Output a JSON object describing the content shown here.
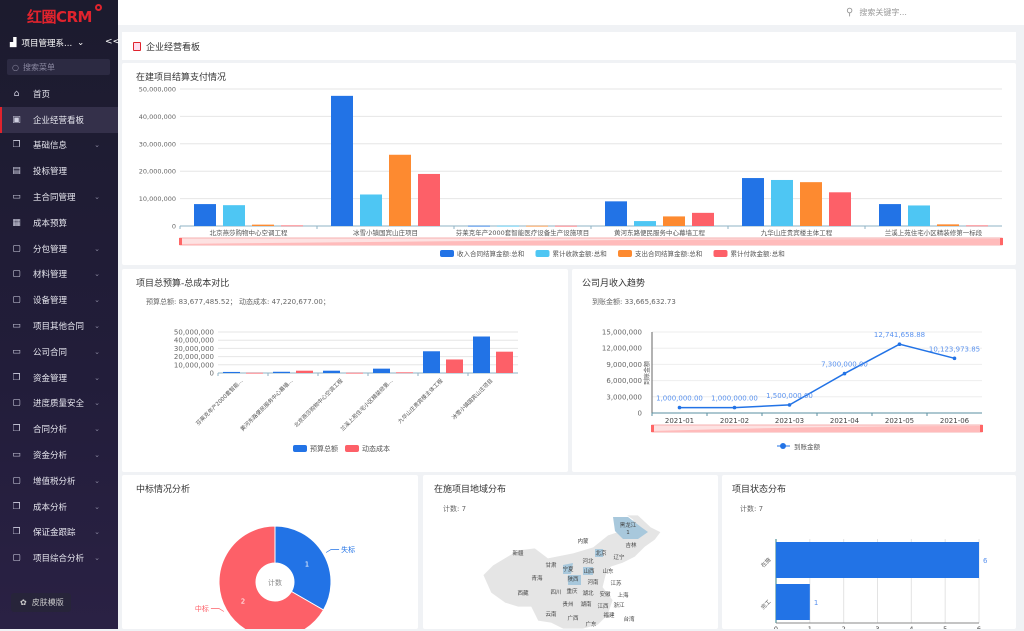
{
  "sidebar": {
    "logo": "红圈CRM",
    "system": "项目管理系...",
    "collapse": "<<",
    "search_placeholder": "搜索菜单",
    "items": [
      {
        "label": "首页",
        "icon": "home-icon",
        "sub": false
      },
      {
        "label": "企业经营看板",
        "icon": "dashboard-icon",
        "sub": false,
        "active": true
      },
      {
        "label": "基础信息",
        "icon": "copy-icon",
        "sub": true
      },
      {
        "label": "投标管理",
        "icon": "document-icon",
        "sub": false
      },
      {
        "label": "主合同管理",
        "icon": "window-icon",
        "sub": true
      },
      {
        "label": "成本预算",
        "icon": "budget-icon",
        "sub": false
      },
      {
        "label": "分包管理",
        "icon": "folder-icon",
        "sub": true
      },
      {
        "label": "材料管理",
        "icon": "folder-icon",
        "sub": true
      },
      {
        "label": "设备管理",
        "icon": "folder-icon",
        "sub": true
      },
      {
        "label": "项目其他合同",
        "icon": "window-icon",
        "sub": true
      },
      {
        "label": "公司合同",
        "icon": "window-icon",
        "sub": true
      },
      {
        "label": "资金管理",
        "icon": "copy-icon",
        "sub": true
      },
      {
        "label": "进度质量安全",
        "icon": "folder-icon",
        "sub": true
      },
      {
        "label": "合同分析",
        "icon": "copy-icon",
        "sub": true
      },
      {
        "label": "资金分析",
        "icon": "window-icon",
        "sub": true
      },
      {
        "label": "增值税分析",
        "icon": "folder-icon",
        "sub": true
      },
      {
        "label": "成本分析",
        "icon": "copy-icon",
        "sub": true
      },
      {
        "label": "保证金跟踪",
        "icon": "copy-icon",
        "sub": true
      },
      {
        "label": "项目综合分析",
        "icon": "folder-icon",
        "sub": true
      }
    ],
    "skin": "皮肤模版"
  },
  "header": {
    "search_placeholder": "搜索关键字..."
  },
  "page": {
    "title": "企业经营看板"
  },
  "chart_data": [
    {
      "id": "settlement",
      "type": "bar",
      "title": "在建项目结算支付情况",
      "categories": [
        "北京燕莎购物中心空调工程",
        "冰雪小镇国宾山庄项目",
        "芬莱克年产2000套智能医疗设备生产设施项目",
        "黄河东路便民服务中心幕墙工程",
        "九华山庄贵宾楼主体工程",
        "兰溪上苑住宅小区精装修第一标段"
      ],
      "ylim": [
        0,
        50000000
      ],
      "yticks": [
        "0",
        "10,000,000",
        "20,000,000",
        "30,000,000",
        "40,000,000",
        "50,000,000"
      ],
      "grid": true,
      "legend": "bottom",
      "series": [
        {
          "name": "收入合同结算金额:总和",
          "color": "#2273e6",
          "values": [
            8000000,
            47500000,
            100000,
            9000000,
            17500000,
            8000000
          ]
        },
        {
          "name": "累计收款金额:总和",
          "color": "#4ec6f3",
          "values": [
            7600000,
            11500000,
            100000,
            1800000,
            16800000,
            7500000
          ]
        },
        {
          "name": "支出合同结算金额:总和",
          "color": "#fd8a30",
          "values": [
            500000,
            26000000,
            100000,
            3500000,
            16000000,
            600000
          ]
        },
        {
          "name": "累计付款金额:总和",
          "color": "#fd6068",
          "values": [
            200000,
            19000000,
            100000,
            4800000,
            12300000,
            200000
          ]
        }
      ]
    },
    {
      "id": "budget",
      "type": "bar",
      "title": "项目总预算-总成本对比",
      "summary": "预算总额: 83,677,485.52；  动态成本: 47,220,677.00；",
      "categories": [
        "芬莱克年产2000套智能...",
        "黄河东路便民服务中心幕墙...",
        "北京燕莎购物中心空调工程",
        "兰溪上苑住宅小区精装修第...",
        "九华山庄贵宾楼主体工程",
        "冰雪小镇国宾山庄项目"
      ],
      "ylim": [
        0,
        50000000
      ],
      "yticks": [
        "0",
        "10,000,000",
        "20,000,000",
        "30,000,000",
        "40,000,000",
        "50,000,000"
      ],
      "grid": true,
      "legend": "bottom",
      "series": [
        {
          "name": "预算总额",
          "color": "#2273e6",
          "values": [
            1300000,
            1500000,
            2800000,
            5300000,
            26500000,
            44500000
          ]
        },
        {
          "name": "动态成本",
          "color": "#fd6068",
          "values": [
            300000,
            2800000,
            300000,
            800000,
            16500000,
            26000000
          ]
        }
      ]
    },
    {
      "id": "income",
      "type": "line",
      "title": "公司月收入趋势",
      "summary": "到账金额: 33,665,632.73",
      "ylabel": "到账金额",
      "categories": [
        "2021-01",
        "2021-02",
        "2021-03",
        "2021-04",
        "2021-05",
        "2021-06"
      ],
      "ylim": [
        0,
        15000000
      ],
      "yticks": [
        "0",
        "3,000,000",
        "6,000,000",
        "9,000,000",
        "12,000,000",
        "15,000,000"
      ],
      "grid": true,
      "legend": "bottom",
      "series": [
        {
          "name": "到账金额",
          "color": "#2273e6",
          "values": [
            1000000,
            1000000,
            1500000,
            7300000,
            12741658.88,
            10123973.85
          ],
          "labels": [
            "1,000,000.00",
            "1,000,000.00",
            "1,500,000.00",
            "7,300,000.00",
            "12,741,658.88",
            "10,123,973.85"
          ]
        }
      ]
    },
    {
      "id": "bid",
      "type": "pie",
      "title": "中标情况分析",
      "center_label": "计数",
      "slices": [
        {
          "name": "失标",
          "value": 1,
          "color": "#2273e6"
        },
        {
          "name": "中标",
          "value": 2,
          "color": "#fd6068"
        }
      ]
    },
    {
      "id": "region",
      "type": "map",
      "title": "在施项目地域分布",
      "summary": "计数: 7",
      "highlight_color": "#a8c8dc",
      "labels": [
        "黑龙江",
        "1",
        "内蒙",
        "吉林",
        "新疆",
        "北京",
        "河北",
        "辽宁",
        "甘肃",
        "宁夏",
        "陕西",
        "山西",
        "山东",
        "青海",
        "河南",
        "江苏",
        "西藏",
        "四川",
        "重庆",
        "湖北",
        "安徽",
        "上海",
        "浙江",
        "贵州",
        "湖南",
        "江西",
        "云南",
        "福建",
        "广西",
        "台湾",
        "广东"
      ]
    },
    {
      "id": "status",
      "type": "bar",
      "orientation": "horizontal",
      "title": "项目状态分布",
      "summary": "计数: 7",
      "categories": [
        "在施",
        "完工"
      ],
      "values": [
        6,
        1
      ],
      "xlim": [
        0,
        6
      ],
      "xticks": [
        "0",
        "1",
        "2",
        "3",
        "4",
        "5",
        "6"
      ],
      "color": "#2273e6"
    }
  ]
}
